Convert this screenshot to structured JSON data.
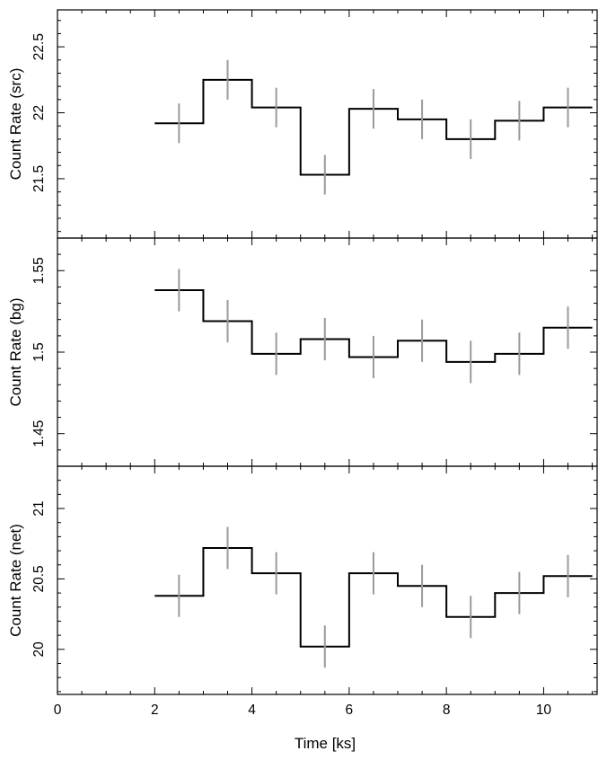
{
  "chart_data": [
    {
      "type": "line",
      "panel": "src",
      "ylabel": "Count Rate (src)",
      "xlim": [
        0,
        11.1
      ],
      "ylim": [
        21.05,
        22.78
      ],
      "yticks": [
        21.5,
        22,
        22.5
      ],
      "ytick_labels": [
        "21.5",
        "22",
        "22.5"
      ],
      "series": [
        {
          "style": "histogram-step",
          "bin_edges": [
            2,
            3,
            4,
            5,
            6,
            7,
            8,
            9,
            10,
            11
          ],
          "values": [
            21.92,
            22.25,
            22.04,
            21.53,
            22.03,
            21.95,
            21.8,
            21.94,
            22.04
          ],
          "errors": [
            0.15,
            0.15,
            0.15,
            0.15,
            0.15,
            0.15,
            0.15,
            0.15,
            0.15
          ]
        }
      ]
    },
    {
      "type": "line",
      "panel": "bg",
      "ylabel": "Count Rate (bg)",
      "xlim": [
        0,
        11.1
      ],
      "ylim": [
        1.43,
        1.57
      ],
      "yticks": [
        1.45,
        1.5,
        1.55
      ],
      "ytick_labels": [
        "1.45",
        "1.5",
        "1.55"
      ],
      "series": [
        {
          "style": "histogram-step",
          "bin_edges": [
            2,
            3,
            4,
            5,
            6,
            7,
            8,
            9,
            10,
            11
          ],
          "values": [
            1.538,
            1.519,
            1.499,
            1.508,
            1.497,
            1.507,
            1.494,
            1.499,
            1.515
          ],
          "errors": [
            0.013,
            0.013,
            0.013,
            0.013,
            0.013,
            0.013,
            0.013,
            0.013,
            0.013
          ]
        }
      ]
    },
    {
      "type": "line",
      "panel": "net",
      "ylabel": "Count Rate (net)",
      "xlabel": "Time [ks]",
      "xlim": [
        0,
        11.1
      ],
      "ylim": [
        19.68,
        21.3
      ],
      "yticks": [
        20,
        20.5,
        21
      ],
      "ytick_labels": [
        "20",
        "20.5",
        "21"
      ],
      "xticks": [
        0,
        2,
        4,
        6,
        8,
        10
      ],
      "xtick_labels": [
        "0",
        "2",
        "4",
        "6",
        "8",
        "10"
      ],
      "series": [
        {
          "style": "histogram-step",
          "bin_edges": [
            2,
            3,
            4,
            5,
            6,
            7,
            8,
            9,
            10,
            11
          ],
          "values": [
            20.38,
            20.72,
            20.54,
            20.02,
            20.54,
            20.45,
            20.23,
            20.4,
            20.52
          ],
          "errors": [
            0.15,
            0.15,
            0.15,
            0.15,
            0.15,
            0.15,
            0.15,
            0.15,
            0.15
          ]
        }
      ]
    }
  ]
}
